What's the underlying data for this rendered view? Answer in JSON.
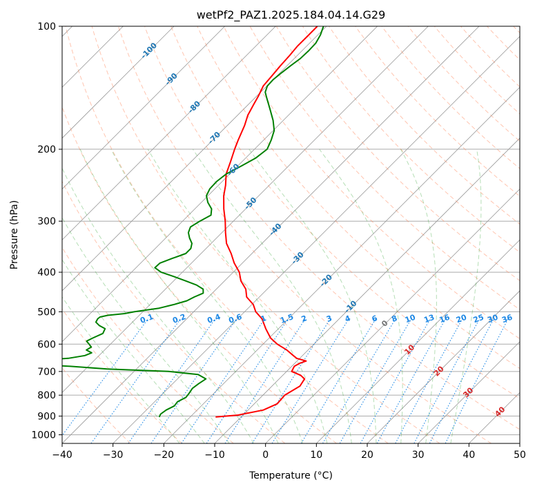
{
  "chart_data": {
    "type": "line",
    "title": "wetPf2_PAZ1.2025.184.04.14.G29",
    "xlabel": "Temperature (°C)",
    "ylabel": "Pressure (hPa)",
    "xlim": [
      -40,
      50
    ],
    "ylim": [
      1050,
      100
    ],
    "y_scale": "log",
    "grid": true,
    "x_ticks": [
      -40,
      -30,
      -20,
      -10,
      0,
      10,
      20,
      30,
      40,
      50
    ],
    "x_tick_labels": [
      "−40",
      "−30",
      "−20",
      "−10",
      "0",
      "10",
      "20",
      "30",
      "40",
      "50"
    ],
    "y_ticks": [
      1000,
      900,
      800,
      700,
      600,
      500,
      400,
      300,
      200,
      100
    ],
    "y_tick_labels": [
      "1000",
      "900",
      "800",
      "700",
      "600",
      "500",
      "400",
      "300",
      "200",
      "100"
    ],
    "series": [
      {
        "role": "temperature",
        "color": "#ff0000",
        "pressure": [
          905,
          895,
          870,
          840,
          800,
          760,
          730,
          715,
          700,
          680,
          668,
          660,
          650,
          640,
          620,
          600,
          580,
          550,
          520,
          500,
          480,
          460,
          440,
          420,
          400,
          380,
          360,
          340,
          320,
          300,
          280,
          260,
          245,
          230,
          215,
          200,
          190,
          175,
          165,
          155,
          148,
          140,
          132,
          125,
          118,
          112,
          106,
          100
        ],
        "temperature": [
          -15,
          -11,
          -7,
          -5.5,
          -5.7,
          -4.5,
          -5,
          -6.5,
          -9,
          -9.5,
          -9,
          -8.2,
          -10.6,
          -11.8,
          -14.2,
          -17.2,
          -19.7,
          -22.5,
          -25.2,
          -27.8,
          -29.7,
          -32.5,
          -34.2,
          -36.8,
          -38.8,
          -41.6,
          -44.1,
          -47,
          -49.3,
          -51.6,
          -54.3,
          -56.9,
          -58.6,
          -60.7,
          -62.2,
          -63.9,
          -65,
          -66.6,
          -68,
          -69,
          -69.7,
          -70.7,
          -71,
          -71.3,
          -71.5,
          -71.8,
          -71.8,
          -71.8
        ]
      },
      {
        "role": "dewpoint",
        "color": "#008000",
        "pressure": [
          905,
          890,
          870,
          850,
          830,
          810,
          790,
          770,
          750,
          730,
          712,
          700,
          690,
          680,
          672,
          668,
          665,
          663,
          658,
          650,
          640,
          630,
          620,
          610,
          600,
          590,
          580,
          565,
          550,
          540,
          530,
          520,
          515,
          510,
          505,
          500,
          490,
          480,
          470,
          460,
          450,
          440,
          430,
          420,
          410,
          400,
          390,
          380,
          370,
          360,
          350,
          340,
          330,
          320,
          310,
          300,
          290,
          280,
          270,
          260,
          250,
          240,
          230,
          220,
          210,
          200,
          190,
          180,
          170,
          160,
          150,
          145,
          140,
          135,
          130,
          125,
          120,
          115,
          110,
          105,
          100
        ],
        "temperature": [
          -26.1,
          -26.4,
          -26.1,
          -25.3,
          -25.5,
          -24.7,
          -24.9,
          -25.2,
          -24.9,
          -24.4,
          -26.8,
          -33.2,
          -45.8,
          -53.5,
          -61.5,
          -67.7,
          -71.1,
          -71.6,
          -61.3,
          -55.5,
          -52.8,
          -52,
          -53.6,
          -53.2,
          -54.2,
          -55.3,
          -54.7,
          -53.6,
          -54.1,
          -55.9,
          -57.2,
          -57.5,
          -57.4,
          -56.2,
          -53.2,
          -51.7,
          -47.5,
          -45.3,
          -43.5,
          -42.8,
          -41.8,
          -42.6,
          -44.7,
          -47.7,
          -50.8,
          -54.2,
          -56.3,
          -56.2,
          -54.7,
          -53,
          -53,
          -53.8,
          -55.3,
          -56.6,
          -57.3,
          -56.6,
          -55.6,
          -56.7,
          -58.7,
          -60.3,
          -61,
          -61.1,
          -60.7,
          -59.3,
          -58,
          -57.5,
          -58.5,
          -59.8,
          -62,
          -64.7,
          -67.6,
          -69.1,
          -69.9,
          -70,
          -69.7,
          -69.3,
          -68.8,
          -68.7,
          -68.8,
          -69.5,
          -70.6
        ]
      }
    ],
    "dry_adiabats_theta_c": [
      -30,
      -20,
      -10,
      0,
      10,
      20,
      30,
      40,
      50,
      60,
      70,
      80,
      90,
      100,
      110,
      120,
      130,
      140,
      150,
      160,
      170,
      180,
      190,
      200
    ],
    "moist_adiabats_c": [
      -20,
      -15,
      -10,
      -5,
      0,
      5,
      10,
      15,
      20,
      25,
      30,
      35
    ],
    "mixing_ratio_lines": [
      0.1,
      0.2,
      0.4,
      0.6,
      1,
      1.5,
      2,
      3,
      4,
      6,
      8,
      10,
      13,
      16,
      20,
      25,
      30,
      36
    ],
    "mixing_ratio_labels": [
      "0.1",
      "0.2",
      "0.4",
      "0.6",
      "1",
      "1.5",
      "2",
      "3",
      "4",
      "6",
      "8",
      "10",
      "13",
      "16",
      "20",
      "25",
      "30",
      "36"
    ],
    "isotherm_labels": [
      {
        "value": -100,
        "text": "-100",
        "pressure": 115
      },
      {
        "value": -90,
        "text": "-90",
        "pressure": 135
      },
      {
        "value": -80,
        "text": "-80",
        "pressure": 158
      },
      {
        "value": -70,
        "text": "-70",
        "pressure": 188
      },
      {
        "value": -60,
        "text": "-60",
        "pressure": 225
      },
      {
        "value": -50,
        "text": "-50",
        "pressure": 272
      },
      {
        "value": -40,
        "text": "-40",
        "pressure": 315
      },
      {
        "value": -30,
        "text": "-30",
        "pressure": 370
      },
      {
        "value": -20,
        "text": "-20",
        "pressure": 420
      },
      {
        "value": -10,
        "text": "-10",
        "pressure": 487
      },
      {
        "value": 0,
        "text": "0",
        "pressure": 535
      },
      {
        "value": 10,
        "text": "10",
        "pressure": 620
      },
      {
        "value": 20,
        "text": "20",
        "pressure": 700
      },
      {
        "value": 30,
        "text": "30",
        "pressure": 790
      },
      {
        "value": 40,
        "text": "40",
        "pressure": 880
      }
    ],
    "colors": {
      "temperature": "#ff0000",
      "dewpoint": "#008000",
      "isotherm_label_cold": "#1f77b4",
      "isotherm_label_warm": "#d62728",
      "mixing_ratio": "#1e88e5",
      "dry_adiabat": "#ff7f50",
      "moist_adiabat": "#2ca02c",
      "grid": "#aaaaaa"
    }
  }
}
